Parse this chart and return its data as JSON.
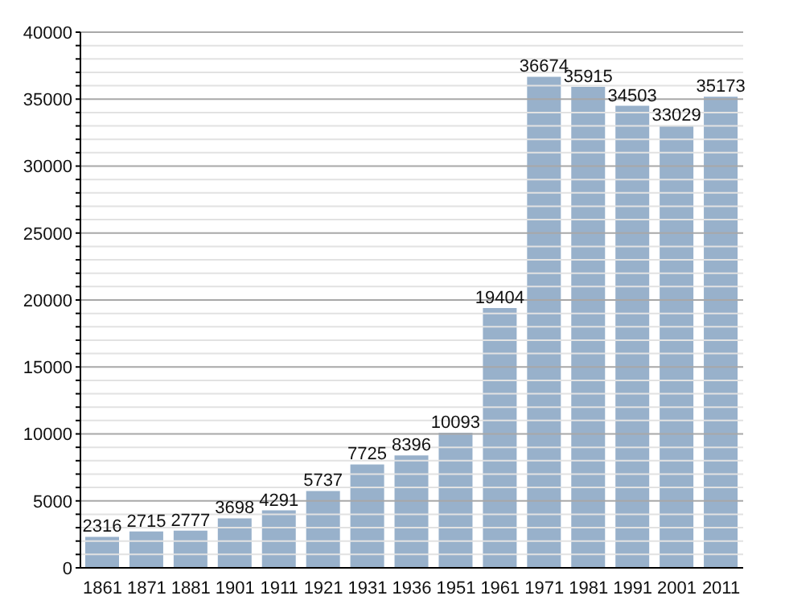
{
  "chart_data": {
    "type": "bar",
    "categories": [
      "1861",
      "1871",
      "1881",
      "1901",
      "1911",
      "1921",
      "1931",
      "1936",
      "1951",
      "1961",
      "1971",
      "1981",
      "1991",
      "2001",
      "2011"
    ],
    "values": [
      2316,
      2715,
      2777,
      3698,
      4291,
      5737,
      7725,
      8396,
      10093,
      19404,
      36674,
      35915,
      34503,
      33029,
      35173
    ],
    "color": "#98b1cb",
    "ylim": [
      0,
      40000
    ],
    "yticks": [
      0,
      {
        "value": 1000,
        "label": null
      },
      {
        "value": 2000,
        "label": null
      },
      {
        "value": 3000,
        "label": null
      },
      {
        "value": 4000,
        "label": null
      },
      5000,
      {
        "value": 6000,
        "label": null
      },
      {
        "value": 7000,
        "label": null
      },
      {
        "value": 8000,
        "label": null
      },
      {
        "value": 9000,
        "label": null
      },
      10000,
      {
        "value": 11000,
        "label": null
      },
      {
        "value": 12000,
        "label": null
      },
      {
        "value": 13000,
        "label": null
      },
      {
        "value": 14000,
        "label": null
      },
      15000,
      {
        "value": 16000,
        "label": null
      },
      {
        "value": 17000,
        "label": null
      },
      {
        "value": 18000,
        "label": null
      },
      {
        "value": 19000,
        "label": null
      },
      20000,
      {
        "value": 21000,
        "label": null
      },
      {
        "value": 22000,
        "label": null
      },
      {
        "value": 23000,
        "label": null
      },
      {
        "value": 24000,
        "label": null
      },
      25000,
      {
        "value": 26000,
        "label": null
      },
      {
        "value": 27000,
        "label": null
      },
      {
        "value": 28000,
        "label": null
      },
      {
        "value": 29000,
        "label": null
      },
      30000,
      {
        "value": 31000,
        "label": null
      },
      {
        "value": 32000,
        "label": null
      },
      {
        "value": 33000,
        "label": null
      },
      {
        "value": 34000,
        "label": null
      },
      35000,
      {
        "value": 36000,
        "label": null
      },
      {
        "value": 37000,
        "label": null
      },
      {
        "value": 38000,
        "label": null
      },
      {
        "value": 39000,
        "label": null
      },
      40000
    ],
    "grid": "y",
    "data_labels": true
  }
}
